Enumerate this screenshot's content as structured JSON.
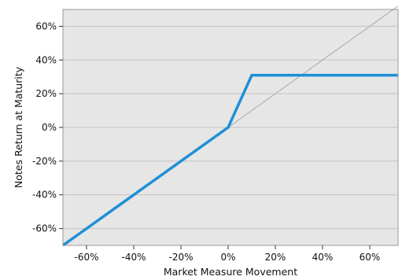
{
  "chart_data": {
    "type": "line",
    "title": "",
    "xlabel": "Market Measure Movement",
    "ylabel": "Notes Return at Maturity",
    "xlim": [
      -70,
      72
    ],
    "ylim": [
      -70,
      70
    ],
    "x_ticks": [
      -60,
      -40,
      -20,
      0,
      20,
      40,
      60
    ],
    "y_ticks": [
      60,
      40,
      20,
      0,
      -20,
      -40,
      -60
    ],
    "x_tick_labels": [
      "-60%",
      "-40%",
      "-20%",
      "0%",
      "20%",
      "40%",
      "60%"
    ],
    "y_tick_labels": [
      "60%",
      "40%",
      "20%",
      "0%",
      "-20%",
      "-40%",
      "-60%"
    ],
    "grid": "horizontal",
    "series": [
      {
        "color": "#1e8fd5",
        "x": [
          -70,
          0,
          10,
          72
        ],
        "y": [
          -70,
          0,
          31,
          31
        ]
      },
      {
        "color": "#a9a9a9",
        "x": [
          0,
          72
        ],
        "y": [
          0,
          72
        ]
      }
    ],
    "colors": {
      "plot_background": "#e6e6e6",
      "gridline": "#c4c4c4",
      "frame": "#9a9a9a"
    }
  }
}
